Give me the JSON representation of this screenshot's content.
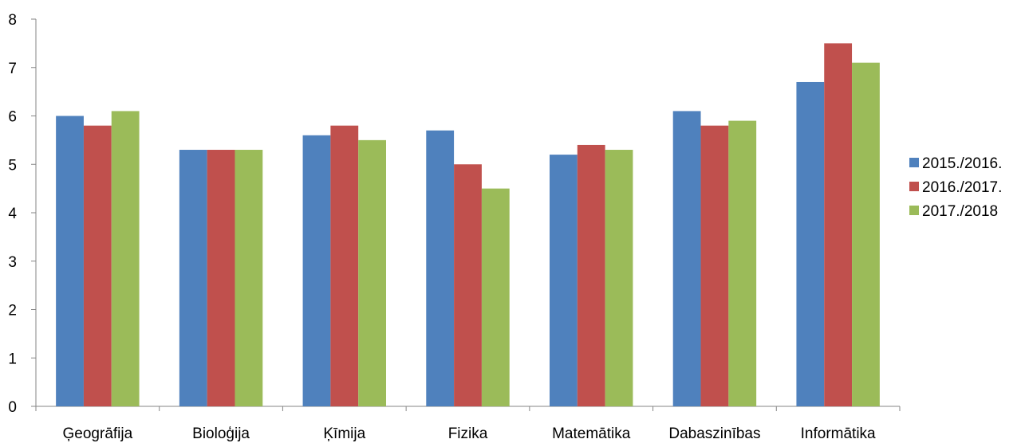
{
  "chart_data": {
    "type": "bar",
    "title": "",
    "xlabel": "",
    "ylabel": "",
    "ylim": [
      0,
      8
    ],
    "yticks": [
      0,
      1,
      2,
      3,
      4,
      5,
      6,
      7,
      8
    ],
    "grid": false,
    "legend_position": "right",
    "categories": [
      "Ģeogrāfija",
      "Bioloģija",
      "Ķīmija",
      "Fizika",
      "Matemātika",
      "Dabaszinības",
      "Informātika"
    ],
    "series": [
      {
        "name": "2015./2016.",
        "color": "#4F81BD",
        "values": [
          6.0,
          5.3,
          5.6,
          5.7,
          5.2,
          6.1,
          6.7
        ]
      },
      {
        "name": "2016./2017.",
        "color": "#C0504D",
        "values": [
          5.8,
          5.3,
          5.8,
          5.0,
          5.4,
          5.8,
          7.5
        ]
      },
      {
        "name": "2017./2018",
        "color": "#9BBB59",
        "values": [
          6.1,
          5.3,
          5.5,
          4.5,
          5.3,
          5.9,
          7.1
        ]
      }
    ]
  }
}
